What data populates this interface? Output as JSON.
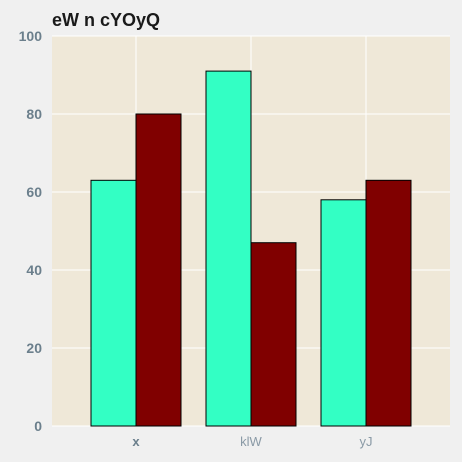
{
  "chart_data": {
    "type": "bar",
    "title": "eW n cYOyQ",
    "categories": [
      "x",
      "klW",
      "yJ"
    ],
    "series": [
      {
        "values": [
          63,
          91,
          58
        ],
        "color": "#33ffc4"
      },
      {
        "values": [
          80,
          47,
          63
        ],
        "color": "#800000"
      }
    ],
    "ylim": [
      0,
      100
    ],
    "yticks": [
      0,
      20,
      40,
      60,
      80,
      100
    ],
    "grid": true,
    "plot_background": "#efe8d8",
    "grid_color": "#ffffff"
  }
}
